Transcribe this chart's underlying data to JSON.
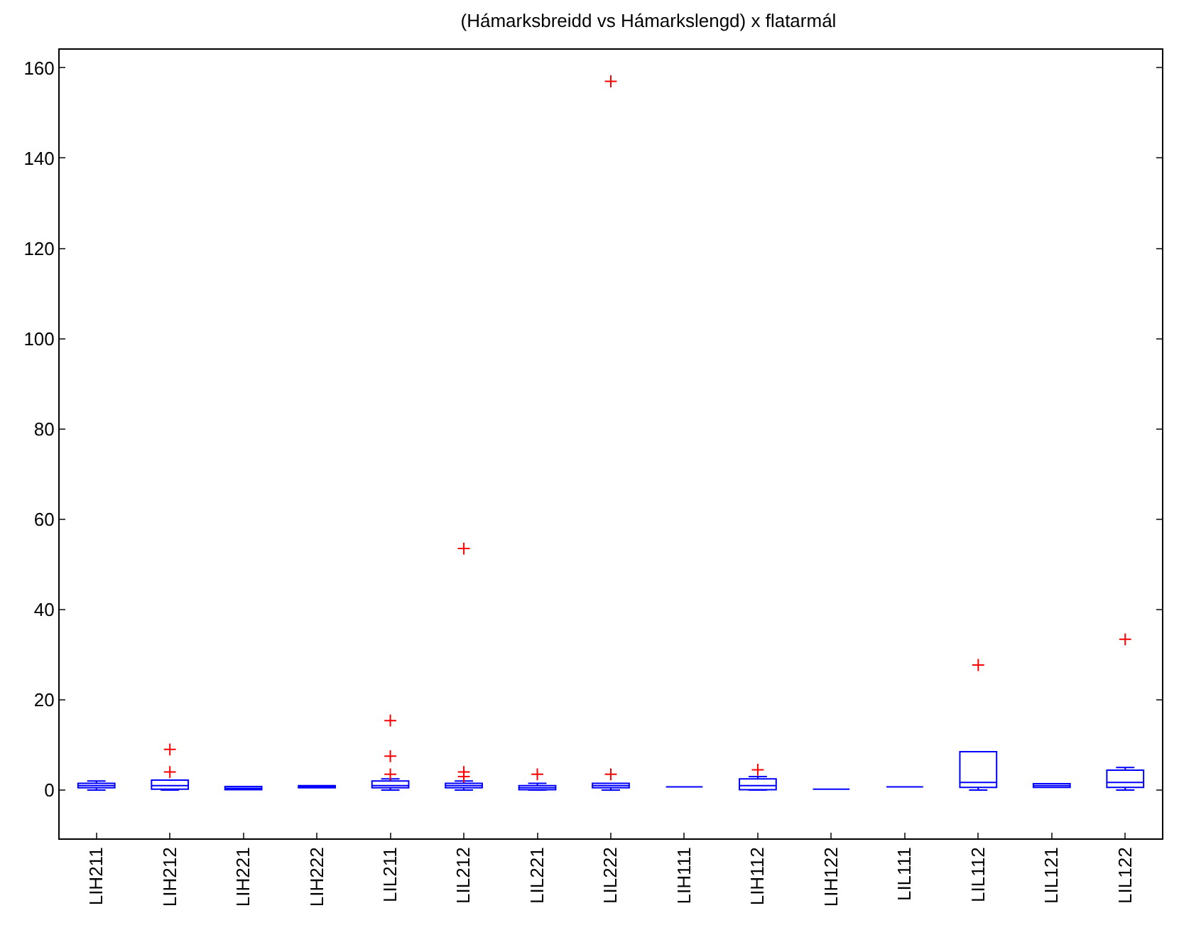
{
  "chart_data": {
    "type": "box",
    "title": "(Hámarksbreidd vs Hámarkslengd) x flatarmál",
    "categories": [
      "LIH211",
      "LIH212",
      "LIH221",
      "LIH222",
      "LIL211",
      "LIL212",
      "LIL221",
      "LIL222",
      "LIH111",
      "LIH112",
      "LIH122",
      "LIL111",
      "LIL112",
      "LIL121",
      "LIL122"
    ],
    "color": "#0000ff",
    "marker": "cross",
    "grid": false,
    "ylim": [
      -10.7,
      164
    ],
    "yticks": [
      0,
      20,
      40,
      60,
      80,
      100,
      120,
      140,
      160
    ],
    "boxes": [
      {
        "low": 0,
        "q1": 0.5,
        "median": 1,
        "q3": 1.5,
        "high": 2
      },
      {
        "low": 0,
        "q1": 0.2,
        "median": 1,
        "q3": 2.2,
        "high": 2.2,
        "outliers": [
          4,
          9
        ]
      },
      {
        "low": 0.1,
        "q1": 0.1,
        "median": 0.3,
        "q3": 0.8,
        "high": 0.8
      },
      {
        "low": 0.5,
        "q1": 0.5,
        "median": 0.8,
        "q3": 1,
        "high": 1
      },
      {
        "low": 0,
        "q1": 0.5,
        "median": 1,
        "q3": 2,
        "high": 2.5,
        "outliers": [
          3.5,
          7.5,
          15.4
        ]
      },
      {
        "low": 0,
        "q1": 0.5,
        "median": 1,
        "q3": 1.5,
        "high": 2,
        "outliers": [
          3,
          4,
          53.5
        ]
      },
      {
        "low": 0,
        "q1": 0.1,
        "median": 0.5,
        "q3": 1,
        "high": 1.5,
        "outliers": [
          3.5
        ]
      },
      {
        "low": 0,
        "q1": 0.5,
        "median": 1,
        "q3": 1.5,
        "high": 1.5,
        "outliers": [
          3.5,
          157
        ]
      },
      {
        "low": 0.7,
        "q1": 0.7,
        "median": 0.7,
        "q3": 0.7,
        "high": 0.7
      },
      {
        "low": 0,
        "q1": 0.1,
        "median": 1,
        "q3": 2.5,
        "high": 3,
        "outliers": [
          4.5
        ]
      },
      {
        "low": 0.2,
        "q1": 0.2,
        "median": 0.2,
        "q3": 0.2,
        "high": 0.2
      },
      {
        "low": 0.7,
        "q1": 0.7,
        "median": 0.7,
        "q3": 0.7,
        "high": 0.7
      },
      {
        "low": 0,
        "q1": 0.6,
        "median": 1.7,
        "q3": 8.5,
        "high": 8.5,
        "outliers": [
          27.7
        ]
      },
      {
        "low": 0.6,
        "q1": 0.6,
        "median": 1,
        "q3": 1.4,
        "high": 1.4
      },
      {
        "low": 0,
        "q1": 0.6,
        "median": 1.7,
        "q3": 4.4,
        "high": 5,
        "outliers": [
          33.4
        ]
      }
    ]
  }
}
